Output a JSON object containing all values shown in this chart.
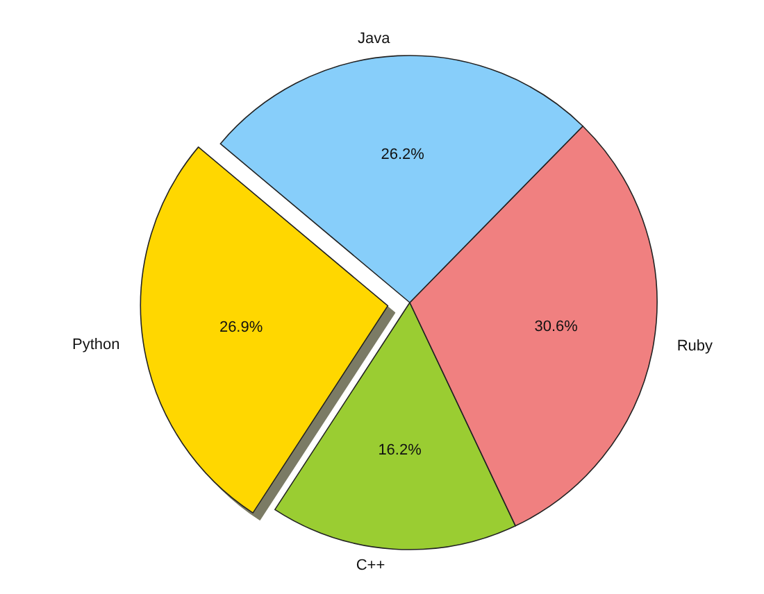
{
  "chart_data": {
    "type": "pie",
    "categories": [
      "Python",
      "C++",
      "Ruby",
      "Java"
    ],
    "values": [
      26.9,
      16.2,
      30.6,
      26.2
    ],
    "colors": [
      "#ffd700",
      "#9acd32",
      "#f08080",
      "#87cefa"
    ],
    "value_labels": [
      "26.9%",
      "16.2%",
      "30.6%",
      "26.2%"
    ]
  }
}
